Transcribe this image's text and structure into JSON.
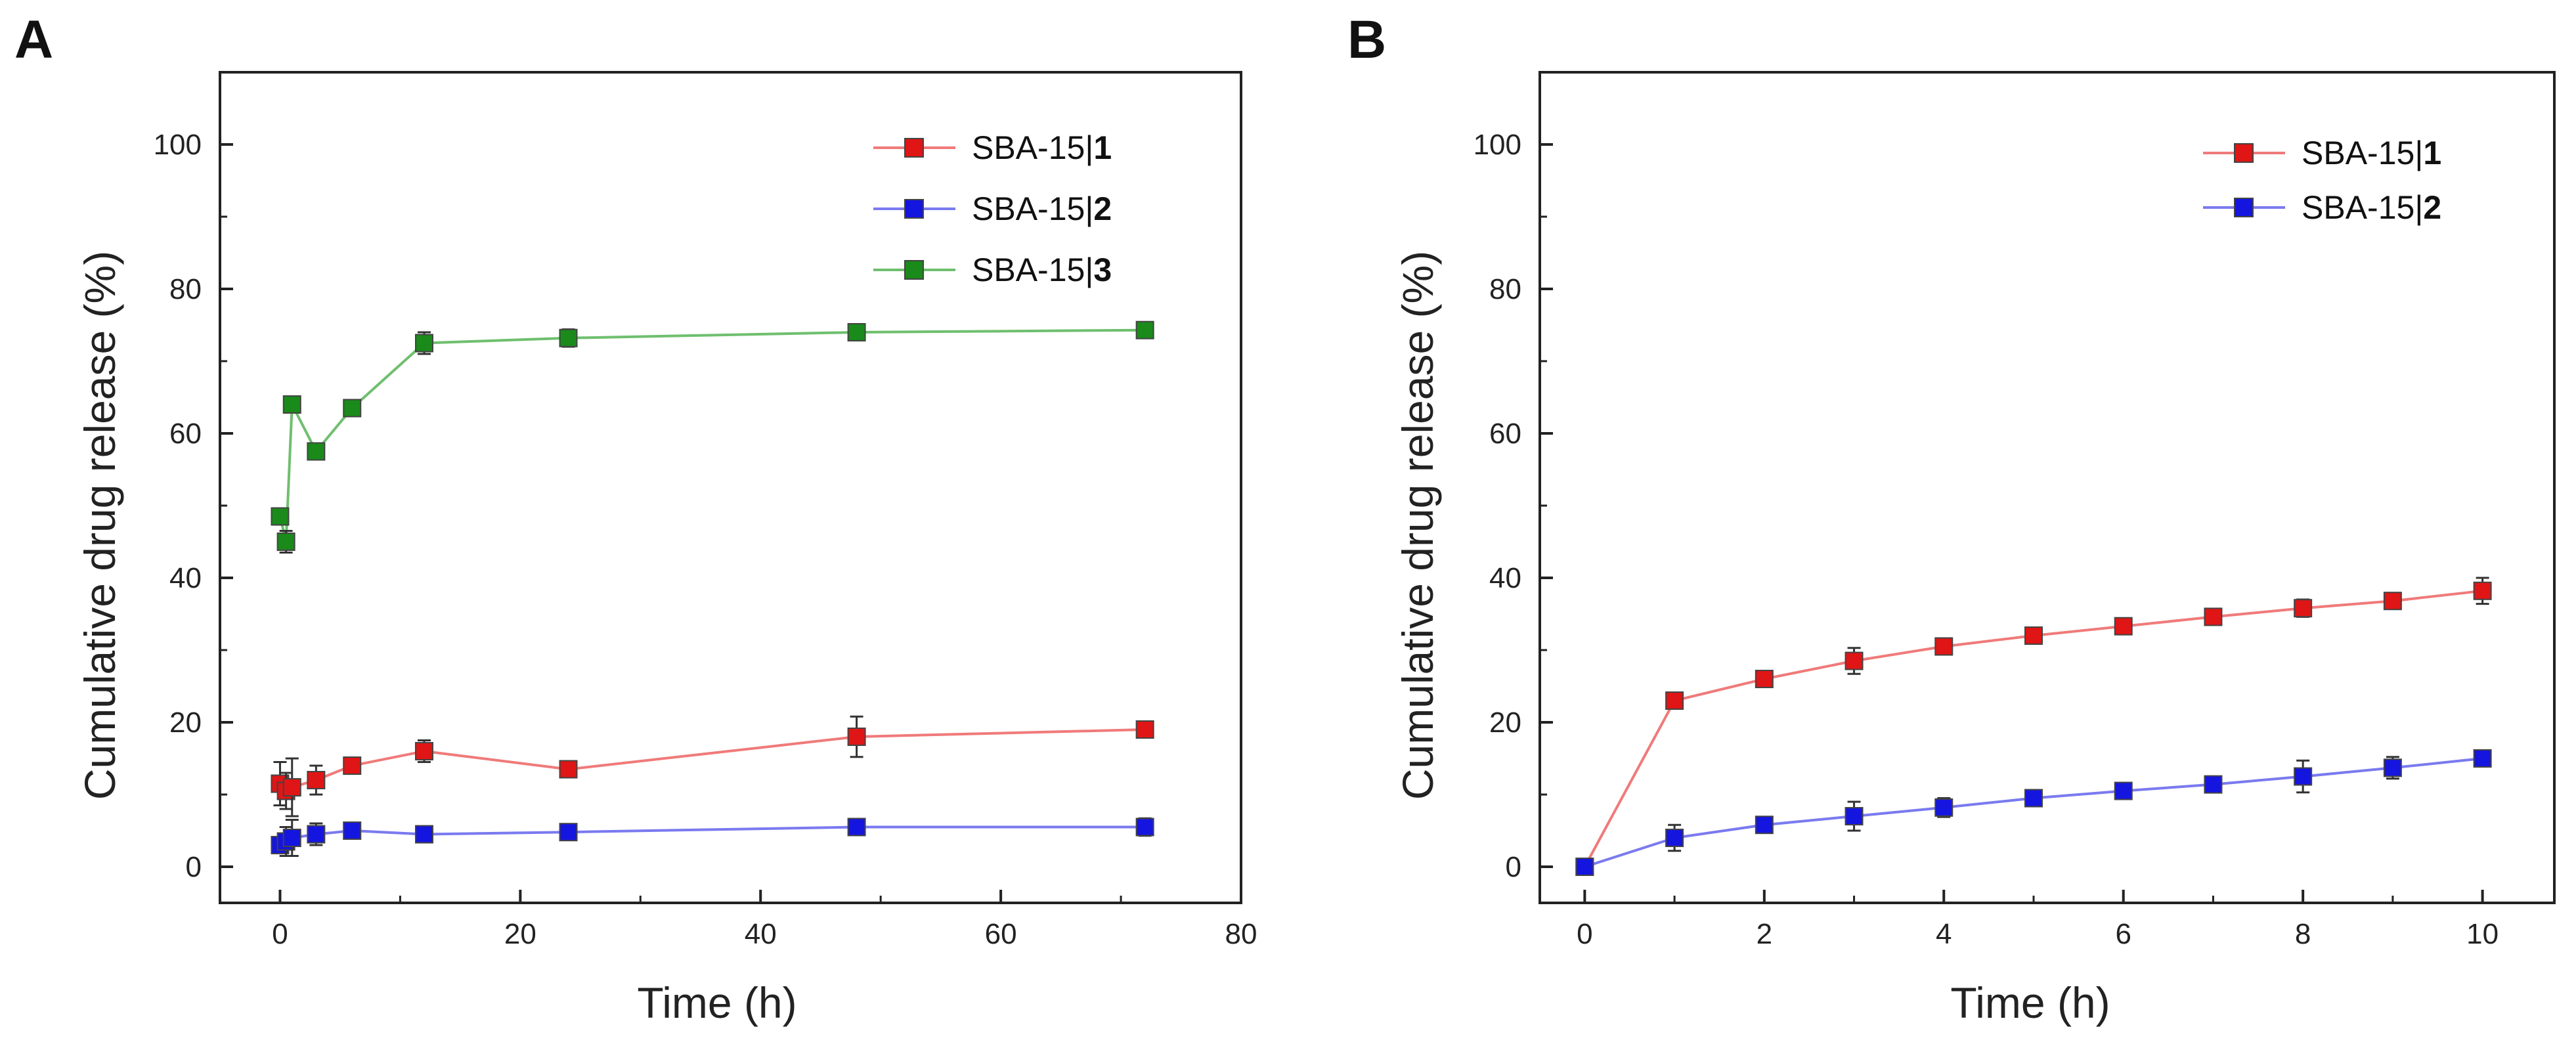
{
  "colors": {
    "series1": "#e01515",
    "series2": "#1515e0",
    "series3": "#1a8a1a",
    "line1": "#f07a7a",
    "line2": "#7a7af0",
    "line3": "#6fbf6f"
  },
  "chart_data": [
    {
      "panel": "A",
      "type": "line",
      "xlabel": "Time (h)",
      "ylabel": "Cumulative drug release (%)",
      "xlim": [
        -5,
        80
      ],
      "ylim": [
        -5,
        110
      ],
      "xticks": [
        0,
        20,
        40,
        60,
        80
      ],
      "yticks": [
        0,
        20,
        40,
        60,
        80,
        100
      ],
      "legend_position": "top-right",
      "series": [
        {
          "name": "SBA-15|",
          "name_bold": "1",
          "color_key": "series1",
          "line_key": "line1",
          "x": [
            0,
            0.5,
            1,
            3,
            6,
            12,
            24,
            48,
            72
          ],
          "y": [
            11.5,
            10.5,
            11,
            12,
            14,
            16,
            13.5,
            18,
            19
          ],
          "err": [
            3,
            2.5,
            4,
            2,
            1,
            1.5,
            0.8,
            2.8,
            1
          ]
        },
        {
          "name": "SBA-15|",
          "name_bold": "2",
          "color_key": "series2",
          "line_key": "line2",
          "x": [
            0,
            0.5,
            1,
            3,
            6,
            12,
            24,
            48,
            72
          ],
          "y": [
            3,
            3.5,
            4,
            4.5,
            5,
            4.5,
            4.8,
            5.5,
            5.5
          ],
          "err": [
            1,
            2,
            2.5,
            1.5,
            1,
            1,
            0.8,
            1,
            1.2
          ]
        },
        {
          "name": "SBA-15|",
          "name_bold": "3",
          "color_key": "series3",
          "line_key": "line3",
          "x": [
            0,
            0.5,
            1,
            3,
            6,
            12,
            24,
            48,
            72
          ],
          "y": [
            48.5,
            45,
            64,
            57.5,
            63.5,
            72.5,
            73.2,
            74,
            74.3
          ],
          "err": [
            0.8,
            1.5,
            1,
            1,
            0.8,
            1.5,
            1.2,
            0.8,
            0.8
          ]
        }
      ]
    },
    {
      "panel": "B",
      "type": "line",
      "xlabel": "Time (h)",
      "ylabel": "Cumulative drug release (%)",
      "xlim": [
        -0.5,
        10.8
      ],
      "ylim": [
        -5,
        110
      ],
      "xticks": [
        0,
        2,
        4,
        6,
        8,
        10
      ],
      "yticks": [
        0,
        20,
        40,
        60,
        80,
        100
      ],
      "legend_position": "top-right",
      "series": [
        {
          "name": "SBA-15|",
          "name_bold": "1",
          "color_key": "series1",
          "line_key": "line1",
          "x": [
            0,
            1,
            2,
            3,
            4,
            5,
            6,
            7,
            8,
            9,
            10
          ],
          "y": [
            0,
            23,
            26,
            28.5,
            30.5,
            32,
            33.3,
            34.6,
            35.8,
            36.8,
            38.2
          ],
          "err": [
            0.5,
            0.8,
            0.8,
            1.8,
            0.8,
            0.6,
            0.8,
            0.8,
            1.2,
            1,
            1.8
          ]
        },
        {
          "name": "SBA-15|",
          "name_bold": "2",
          "color_key": "series2",
          "line_key": "line2",
          "x": [
            0,
            1,
            2,
            3,
            4,
            5,
            6,
            7,
            8,
            9,
            10
          ],
          "y": [
            0,
            4,
            5.8,
            7,
            8.2,
            9.5,
            10.5,
            11.4,
            12.5,
            13.7,
            15
          ],
          "err": [
            0.5,
            1.8,
            0.8,
            2,
            1.3,
            0.8,
            0.8,
            0.8,
            2.2,
            1.5,
            0.8
          ]
        }
      ]
    }
  ]
}
